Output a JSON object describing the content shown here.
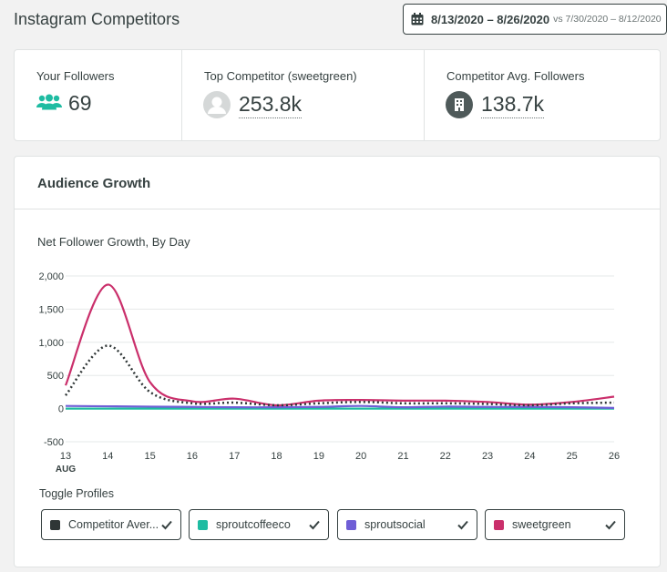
{
  "header": {
    "title": "Instagram Competitors",
    "date_range": "8/13/2020 – 8/26/2020",
    "compare_range": "vs 7/30/2020 – 8/12/2020"
  },
  "stats": {
    "your_followers": {
      "label": "Your Followers",
      "value": "69",
      "icon": "users-icon",
      "icon_color": "#1fbca2"
    },
    "top_competitor": {
      "label": "Top Competitor (sweetgreen)",
      "value": "253.8k",
      "icon": "avatar-placeholder"
    },
    "competitor_avg": {
      "label": "Competitor Avg. Followers",
      "value": "138.7k",
      "icon": "building-icon"
    }
  },
  "audience_growth": {
    "title": "Audience Growth",
    "chart_subtitle": "Net Follower Growth, By Day",
    "toggle_label": "Toggle Profiles"
  },
  "chart_data": {
    "type": "line",
    "title": "Net Follower Growth, By Day",
    "x": [
      "13",
      "14",
      "15",
      "16",
      "17",
      "18",
      "19",
      "20",
      "21",
      "22",
      "23",
      "24",
      "25",
      "26"
    ],
    "x_month_label": "AUG",
    "ylim": [
      -500,
      2000
    ],
    "yticks": [
      "2,000",
      "1,500",
      "1,000",
      "500",
      "0",
      "-500"
    ],
    "ytick_values": [
      2000,
      1500,
      1000,
      500,
      0,
      -500
    ],
    "grid": true,
    "series": [
      {
        "name": "Competitor Aver...",
        "color": "#2f3636",
        "dash": true,
        "values": [
          200,
          950,
          250,
          80,
          90,
          50,
          80,
          100,
          80,
          80,
          70,
          50,
          80,
          90
        ]
      },
      {
        "name": "sproutcoffeeco",
        "color": "#1fbca2",
        "values": [
          0,
          0,
          0,
          0,
          0,
          0,
          0,
          0,
          0,
          0,
          0,
          0,
          0,
          0
        ]
      },
      {
        "name": "sproutsocial",
        "color": "#6f5ed6",
        "values": [
          40,
          35,
          30,
          25,
          20,
          20,
          25,
          40,
          20,
          30,
          25,
          25,
          20,
          10
        ]
      },
      {
        "name": "sweetgreen",
        "color": "#ca2f6b",
        "values": [
          350,
          1870,
          400,
          110,
          150,
          50,
          120,
          130,
          120,
          120,
          100,
          60,
          100,
          180
        ]
      }
    ]
  },
  "toggles": [
    {
      "label": "Competitor Aver...",
      "color": "#2f3636"
    },
    {
      "label": "sproutcoffeeco",
      "color": "#1fbca2"
    },
    {
      "label": "sproutsocial",
      "color": "#6f5ed6"
    },
    {
      "label": "sweetgreen",
      "color": "#ca2f6b"
    }
  ]
}
